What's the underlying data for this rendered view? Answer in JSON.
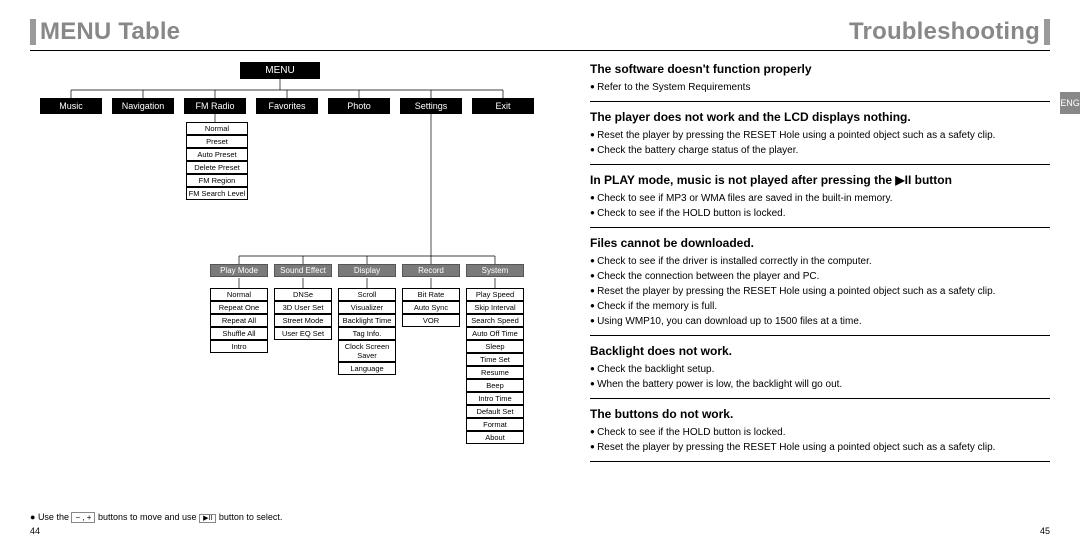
{
  "titles": {
    "left": "MENU Table",
    "right": "Troubleshooting"
  },
  "menu": {
    "root": "MENU",
    "top": [
      "Music",
      "Navigation",
      "FM Radio",
      "Favorites",
      "Photo",
      "Settings",
      "Exit"
    ],
    "fm_sub": [
      "Normal",
      "Preset",
      "Auto Preset",
      "Delete Preset",
      "FM Region",
      "FM Search Level"
    ],
    "settings_tabs": [
      "Play Mode",
      "Sound Effect",
      "Display",
      "Record",
      "System"
    ],
    "play_mode": [
      "Normal",
      "Repeat One",
      "Repeat All",
      "Shuffle All",
      "Intro"
    ],
    "sound_effect": [
      "DNSe",
      "3D User Set",
      "Street Mode",
      "User EQ Set"
    ],
    "display": [
      "Scroll",
      "Visualizer",
      "Backlight Time",
      "Tag Info.",
      "Clock Screen Saver",
      "Language"
    ],
    "record": [
      "Bit Rate",
      "Auto Sync",
      "VOR"
    ],
    "system": [
      "Play Speed",
      "Skip Interval",
      "Search Speed",
      "Auto Off Time",
      "Sleep",
      "Time Set",
      "Resume",
      "Beep",
      "Intro Time",
      "Default Set",
      "Format",
      "About"
    ]
  },
  "footer_hint_prefix": "Use the ",
  "footer_hint_mid": " buttons to move and use ",
  "footer_hint_suffix": " button to select.",
  "footer_btn1": "− , +",
  "footer_btn2": "▶II",
  "issues": [
    {
      "title": "The software doesn't function properly",
      "items": [
        "Refer to the System Requirements"
      ]
    },
    {
      "title": "The player does not work and the LCD displays nothing.",
      "items": [
        "Reset the player by pressing the RESET Hole using a pointed object such as a safety clip.",
        "Check the battery charge status of the player."
      ]
    },
    {
      "title": "In PLAY mode, music is not played after pressing the  ▶II button",
      "items": [
        "Check to see if MP3 or WMA  files are saved in the built-in memory.",
        "Check to see if the HOLD button is locked."
      ]
    },
    {
      "title": "Files cannot be downloaded.",
      "items": [
        "Check to see if the driver is installed correctly in the computer.",
        "Check the connection between the player and PC.",
        "Reset the player by pressing the RESET Hole using a pointed object such as a safety clip.",
        "Check if the memory is full.",
        "Using WMP10, you can download up to 1500 files at a time."
      ]
    },
    {
      "title": "Backlight does not work.",
      "items": [
        "Check the backlight setup.",
        "When the battery power is low, the backlight will go out."
      ]
    },
    {
      "title": "The buttons do not work.",
      "items": [
        "Check to see if the HOLD button is locked.",
        "Reset the player by pressing the RESET Hole using a pointed object such as a safety clip."
      ]
    }
  ],
  "lang_tab": "ENG",
  "page_left": "44",
  "page_right": "45",
  "colors": {
    "grey": "#888888",
    "rule": "#9a9a9a"
  }
}
